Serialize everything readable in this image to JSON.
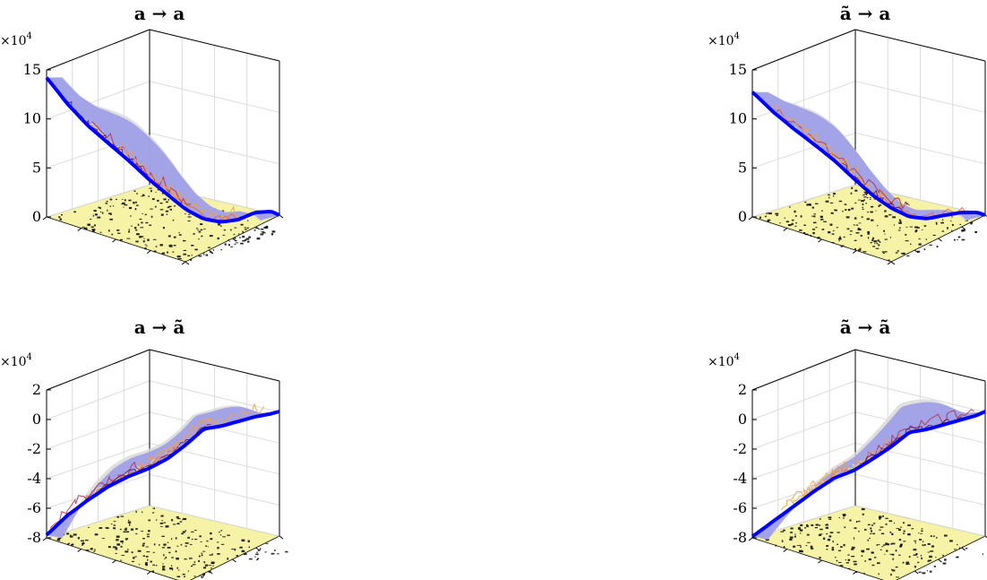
{
  "figure": {
    "background": "#ffffff",
    "floor_color": "#f7f3a6",
    "surface_color": "#9c9ce8",
    "shadow_color": "#d9d9d9",
    "line_color": "#0000ff",
    "trace_colors": [
      "#f5e86e",
      "#f2a33a",
      "#e8673a",
      "#b3314a",
      "#5a1a5e",
      "#e8a06a"
    ]
  },
  "chart_data": [
    {
      "type": "surface3d",
      "title": "a → a",
      "multiplier": "×10",
      "multiplier_exp": "4",
      "zlim": [
        0,
        15
      ],
      "zticks": [
        0,
        5,
        10,
        15
      ],
      "zticklabels": [
        "0",
        "5",
        "10",
        "15"
      ],
      "grid": true,
      "line_profile": [
        [
          0.0,
          14.5
        ],
        [
          0.08,
          11.8
        ],
        [
          0.16,
          9.7
        ],
        [
          0.24,
          8.1
        ],
        [
          0.32,
          6.6
        ],
        [
          0.4,
          5.0
        ],
        [
          0.48,
          3.6
        ],
        [
          0.56,
          2.2
        ],
        [
          0.64,
          1.2
        ],
        [
          0.72,
          0.7
        ],
        [
          0.8,
          0.6
        ],
        [
          0.88,
          0.9
        ],
        [
          0.96,
          0.6
        ],
        [
          1.0,
          0.0
        ]
      ]
    },
    {
      "type": "surface3d",
      "title": "ã → a",
      "multiplier": "×10",
      "multiplier_exp": "4",
      "zlim": [
        0,
        15
      ],
      "zticks": [
        0,
        5,
        10,
        15
      ],
      "zticklabels": [
        "0",
        "5",
        "10",
        "15"
      ],
      "grid": true,
      "line_profile": [
        [
          0.0,
          13.0
        ],
        [
          0.08,
          11.0
        ],
        [
          0.16,
          9.4
        ],
        [
          0.24,
          8.0
        ],
        [
          0.32,
          6.6
        ],
        [
          0.4,
          5.0
        ],
        [
          0.48,
          3.5
        ],
        [
          0.56,
          2.3
        ],
        [
          0.64,
          1.4
        ],
        [
          0.72,
          1.0
        ],
        [
          0.8,
          1.0
        ],
        [
          0.88,
          0.9
        ],
        [
          0.96,
          0.5
        ],
        [
          1.0,
          0.0
        ]
      ]
    },
    {
      "type": "surface3d",
      "title": "a → ã",
      "multiplier": "×10",
      "multiplier_exp": "4",
      "zlim": [
        -8,
        2
      ],
      "zticks": [
        -8,
        -6,
        -4,
        -2,
        0,
        2
      ],
      "zticklabels": [
        "-8",
        "-6",
        "-4",
        "-2",
        "0",
        "2"
      ],
      "grid": true,
      "line_profile": [
        [
          0.0,
          -7.8
        ],
        [
          0.08,
          -6.2
        ],
        [
          0.16,
          -5.0
        ],
        [
          0.24,
          -4.0
        ],
        [
          0.32,
          -3.3
        ],
        [
          0.4,
          -2.8
        ],
        [
          0.48,
          -2.2
        ],
        [
          0.56,
          -1.4
        ],
        [
          0.64,
          -0.5
        ],
        [
          0.72,
          -0.4
        ],
        [
          0.8,
          -0.2
        ],
        [
          0.88,
          0.0
        ],
        [
          0.96,
          0.1
        ],
        [
          1.0,
          0.2
        ]
      ]
    },
    {
      "type": "surface3d",
      "title": "ã → ã",
      "multiplier": "×10",
      "multiplier_exp": "4",
      "zlim": [
        -8,
        2
      ],
      "zticks": [
        -8,
        -6,
        -4,
        -2,
        0,
        2
      ],
      "zticklabels": [
        "-8",
        "-6",
        "-4",
        "-2",
        "0",
        "2"
      ],
      "grid": true,
      "line_profile": [
        [
          0.0,
          -7.9
        ],
        [
          0.08,
          -6.6
        ],
        [
          0.16,
          -5.4
        ],
        [
          0.24,
          -4.3
        ],
        [
          0.32,
          -3.4
        ],
        [
          0.4,
          -2.9
        ],
        [
          0.48,
          -2.2
        ],
        [
          0.56,
          -1.5
        ],
        [
          0.64,
          -0.7
        ],
        [
          0.72,
          -0.6
        ],
        [
          0.8,
          -0.4
        ],
        [
          0.88,
          -0.2
        ],
        [
          0.96,
          0.0
        ],
        [
          1.0,
          0.2
        ]
      ]
    }
  ]
}
